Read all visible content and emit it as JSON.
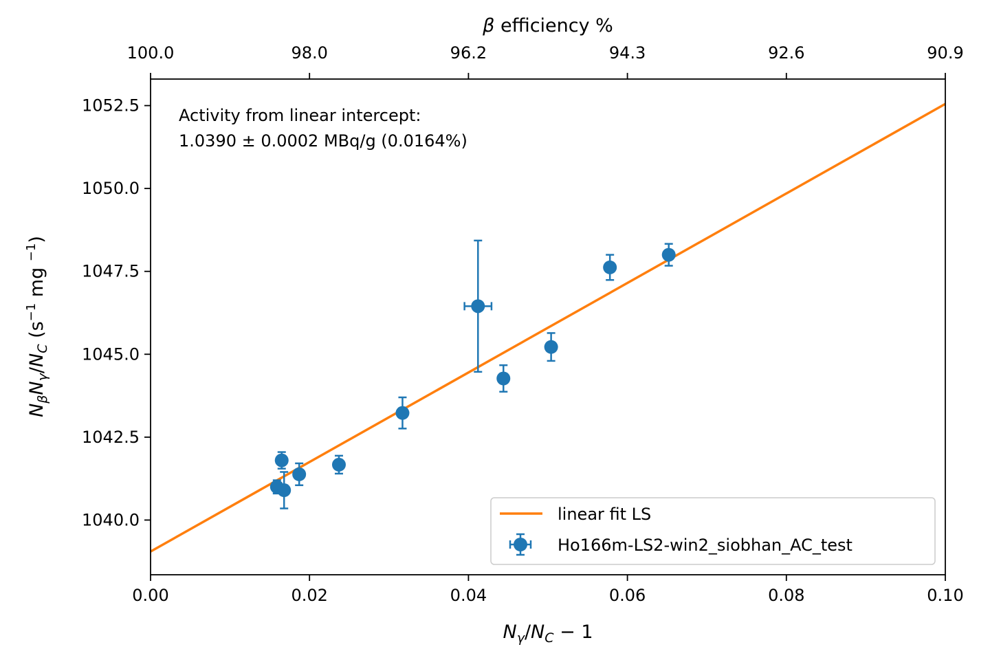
{
  "chart_data": {
    "type": "scatter",
    "x_label_parts": {
      "n1": "N",
      "s1": "γ",
      "slash": "/",
      "n2": "N",
      "s2": "C",
      "rest": " − 1"
    },
    "y_label_parts": {
      "n1": "N",
      "s1": "β",
      "n2": "N",
      "s2": "γ",
      "slash": "/",
      "n3": "N",
      "s3": "C",
      "open": " (s",
      "e1": "−1",
      "mid": " mg ",
      "e2": "−1",
      "close": ")"
    },
    "top_axis_label_parts": {
      "beta": "β",
      "rest": " efficiency %"
    },
    "xlim": [
      0.0,
      0.1
    ],
    "ylim": [
      1038.35,
      1053.3
    ],
    "x_ticks": [
      0.0,
      0.02,
      0.04,
      0.06,
      0.08,
      0.1
    ],
    "x_tick_labels": [
      "0.00",
      "0.02",
      "0.04",
      "0.06",
      "0.08",
      "0.10"
    ],
    "y_ticks": [
      1040.0,
      1042.5,
      1045.0,
      1047.5,
      1050.0,
      1052.5
    ],
    "y_tick_labels": [
      "1040.0",
      "1042.5",
      "1045.0",
      "1047.5",
      "1050.0",
      "1052.5"
    ],
    "top_ticks_x": [
      0.0,
      0.02,
      0.04,
      0.06,
      0.08,
      0.1
    ],
    "top_tick_labels": [
      "100.0",
      "98.0",
      "96.2",
      "94.3",
      "92.6",
      "90.9"
    ],
    "annotation_lines": [
      "Activity from linear intercept:",
      "1.0390 ± 0.0002 MBq/g (0.0164%)"
    ],
    "fit": {
      "name": "linear fit LS",
      "x": [
        0.0,
        0.1
      ],
      "y": [
        1039.05,
        1052.55
      ],
      "color": "#ff7f0e"
    },
    "series": [
      {
        "name": "Ho166m-LS2-win2_siobhan_AC_test",
        "color": "#1f77b4",
        "x": [
          0.0159,
          0.0165,
          0.0168,
          0.0187,
          0.0237,
          0.0317,
          0.0412,
          0.0444,
          0.0504,
          0.0578,
          0.0652
        ],
        "y": [
          1041.0,
          1041.8,
          1040.9,
          1041.38,
          1041.67,
          1043.23,
          1046.45,
          1044.27,
          1045.22,
          1047.62,
          1048.0
        ],
        "yerr": [
          0.2,
          0.25,
          0.55,
          0.33,
          0.27,
          0.47,
          1.98,
          0.4,
          0.42,
          0.38,
          0.33
        ],
        "xerr": [
          0.0003,
          0.0003,
          0.0003,
          0.0003,
          0.0003,
          0.0003,
          0.0017,
          0.0003,
          0.0003,
          0.0003,
          0.0003
        ]
      }
    ],
    "legend": {
      "position": "lower-right"
    },
    "grid": false
  }
}
